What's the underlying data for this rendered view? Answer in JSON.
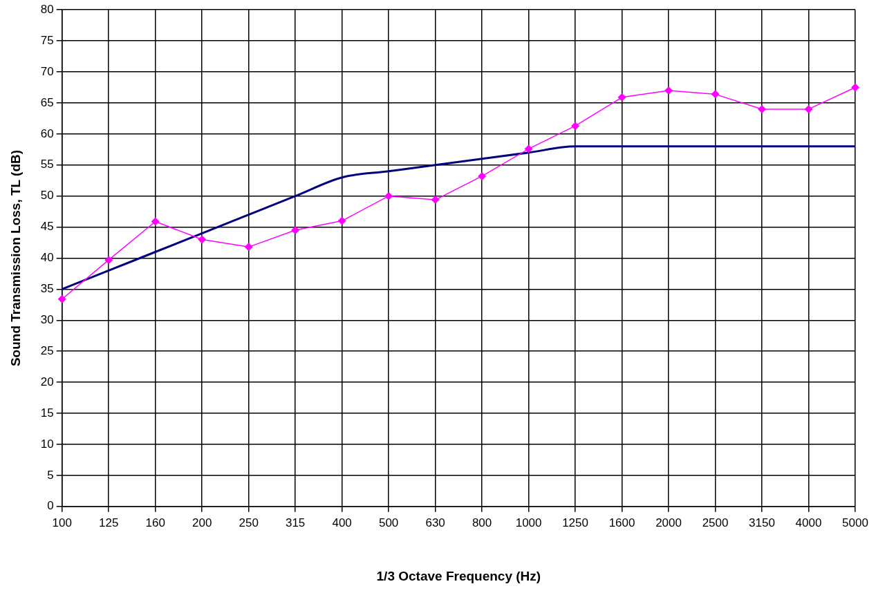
{
  "chart_data": {
    "type": "line",
    "xlabel": "1/3 Octave Frequency (Hz)",
    "ylabel": "Sound Transmission Loss, TL (dB)",
    "categories": [
      "100",
      "125",
      "160",
      "200",
      "250",
      "315",
      "400",
      "500",
      "630",
      "800",
      "1000",
      "1250",
      "1600",
      "2000",
      "2500",
      "3150",
      "4000",
      "5000"
    ],
    "series": [
      {
        "color": "#ff00ff",
        "marker": "diamond",
        "values": [
          33.4,
          39.7,
          45.9,
          43.0,
          41.8,
          44.5,
          46.0,
          50.0,
          49.4,
          53.2,
          57.6,
          61.3,
          65.9,
          67.0,
          66.4,
          64.0,
          64.0,
          67.5
        ]
      },
      {
        "color": "#000080",
        "marker": "none",
        "values": [
          35,
          38,
          41,
          44,
          47,
          50,
          53,
          54,
          55,
          56,
          57,
          58,
          58,
          58,
          58,
          58,
          58,
          58
        ]
      }
    ],
    "ylim": [
      0,
      80
    ],
    "yticks": [
      0,
      5,
      10,
      15,
      20,
      25,
      30,
      35,
      40,
      45,
      50,
      55,
      60,
      65,
      70,
      75,
      80
    ],
    "grid": true,
    "legend": false
  }
}
